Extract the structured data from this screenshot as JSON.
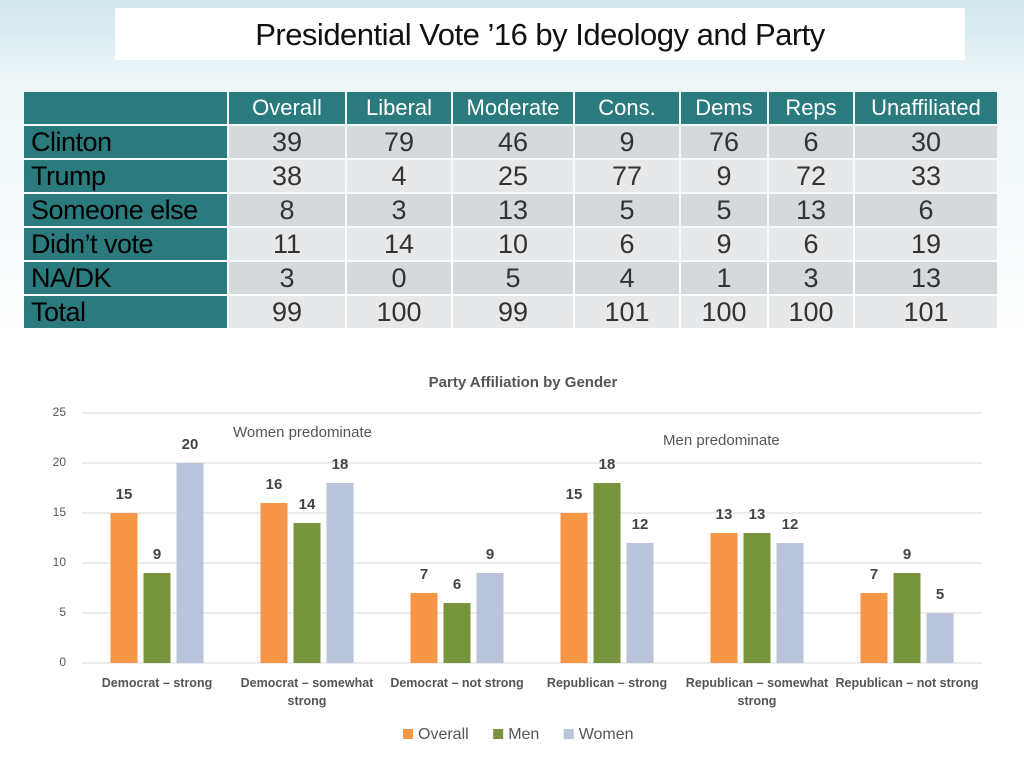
{
  "title": "Presidential Vote ’16 by Ideology and Party",
  "table": {
    "header": [
      "Overall",
      "Liberal",
      "Moderate",
      "Cons.",
      "Dems",
      "Reps",
      "Unaffiliated"
    ],
    "rows": [
      [
        "Clinton",
        39,
        79,
        46,
        9,
        76,
        6,
        30
      ],
      [
        "Trump",
        38,
        4,
        25,
        77,
        9,
        72,
        33
      ],
      [
        "Someone else",
        8,
        3,
        13,
        5,
        5,
        13,
        6
      ],
      [
        "Didn’t vote",
        11,
        14,
        10,
        6,
        9,
        6,
        19
      ],
      [
        "NA/DK",
        3,
        0,
        5,
        4,
        1,
        3,
        13
      ],
      [
        "Total",
        99,
        100,
        99,
        101,
        100,
        100,
        101
      ]
    ]
  },
  "chart_data": {
    "type": "bar",
    "title": "Party Affiliation by Gender",
    "categories": [
      "Democrat – strong",
      "Democrat – somewhat strong",
      "Democrat – not strong",
      "Republican – strong",
      "Republican – somewhat strong",
      "Republican – not strong"
    ],
    "series": [
      {
        "name": "Overall",
        "color": "#f79646",
        "values": [
          15,
          16,
          7,
          15,
          13,
          7
        ]
      },
      {
        "name": "Men",
        "color": "#77933c",
        "values": [
          9,
          14,
          6,
          18,
          13,
          9
        ]
      },
      {
        "name": "Women",
        "color": "#b9c3d9",
        "values": [
          20,
          18,
          9,
          12,
          12,
          5
        ]
      }
    ],
    "annotations": [
      "Women predominate",
      "Men predominate"
    ],
    "ylim": [
      0,
      25
    ],
    "yticks": [
      0,
      5,
      10,
      15,
      20,
      25
    ],
    "grid": true,
    "legend": "bottom"
  }
}
